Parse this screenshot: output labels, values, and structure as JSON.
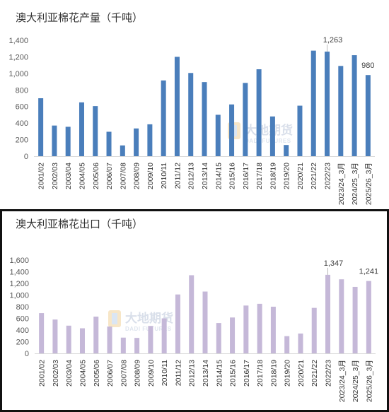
{
  "chart_data": [
    {
      "type": "bar",
      "title": "澳大利亚棉花产量（千吨）",
      "categories": [
        "2001/02",
        "2002/03",
        "2003/04",
        "2004/05",
        "2005/06",
        "2006/07",
        "2007/08",
        "2008/09",
        "2009/10",
        "2010/11",
        "2011/12",
        "2012/13",
        "2013/14",
        "2014/15",
        "2015/16",
        "2016/17",
        "2017/18",
        "2018/19",
        "2019/20",
        "2020/21",
        "2021/22",
        "2022/23",
        "2023/24_3月",
        "2024/25_3月",
        "2025/26_3月"
      ],
      "values": [
        700,
        370,
        355,
        650,
        605,
        295,
        130,
        335,
        385,
        915,
        1200,
        1005,
        895,
        500,
        625,
        885,
        1050,
        480,
        135,
        610,
        1275,
        1263,
        1090,
        1220,
        980
      ],
      "ylim": [
        0,
        1400
      ],
      "yticks": [
        "0",
        "200",
        "400",
        "600",
        "800",
        "1,000",
        "1,200",
        "1,400"
      ],
      "labels": [
        {
          "index": 21,
          "text": "1,263"
        },
        {
          "index": 24,
          "text": "980"
        }
      ],
      "color": "#4a7ebb",
      "grid": false,
      "xlabel": "",
      "ylabel": ""
    },
    {
      "type": "bar",
      "title": "澳大利亚棉花出口（千吨）",
      "categories": [
        "2001/02",
        "2002/03",
        "2003/04",
        "2004/05",
        "2005/06",
        "2006/07",
        "2007/08",
        "2008/09",
        "2009/10",
        "2010/11",
        "2011/12",
        "2012/13",
        "2013/14",
        "2014/15",
        "2015/16",
        "2016/17",
        "2017/18",
        "2018/19",
        "2019/20",
        "2020/21",
        "2021/22",
        "2022/23",
        "2023/24_3月",
        "2024/25_3月",
        "2025/26_3月"
      ],
      "values": [
        690,
        580,
        475,
        430,
        630,
        460,
        270,
        265,
        470,
        600,
        1010,
        1340,
        1060,
        520,
        615,
        820,
        850,
        800,
        295,
        340,
        780,
        1347,
        1270,
        1140,
        1241
      ],
      "ylim": [
        0,
        1600
      ],
      "yticks": [
        "0",
        "200",
        "400",
        "600",
        "800",
        "1,000",
        "1,200",
        "1,400",
        "1,600"
      ],
      "labels": [
        {
          "index": 21,
          "text": "1,347"
        },
        {
          "index": 24,
          "text": "1,241"
        }
      ],
      "color": "#c5b8d8",
      "grid": false,
      "xlabel": "",
      "ylabel": ""
    }
  ],
  "watermark": {
    "brand": "大地期货",
    "sub": "DADI FUTURES"
  }
}
